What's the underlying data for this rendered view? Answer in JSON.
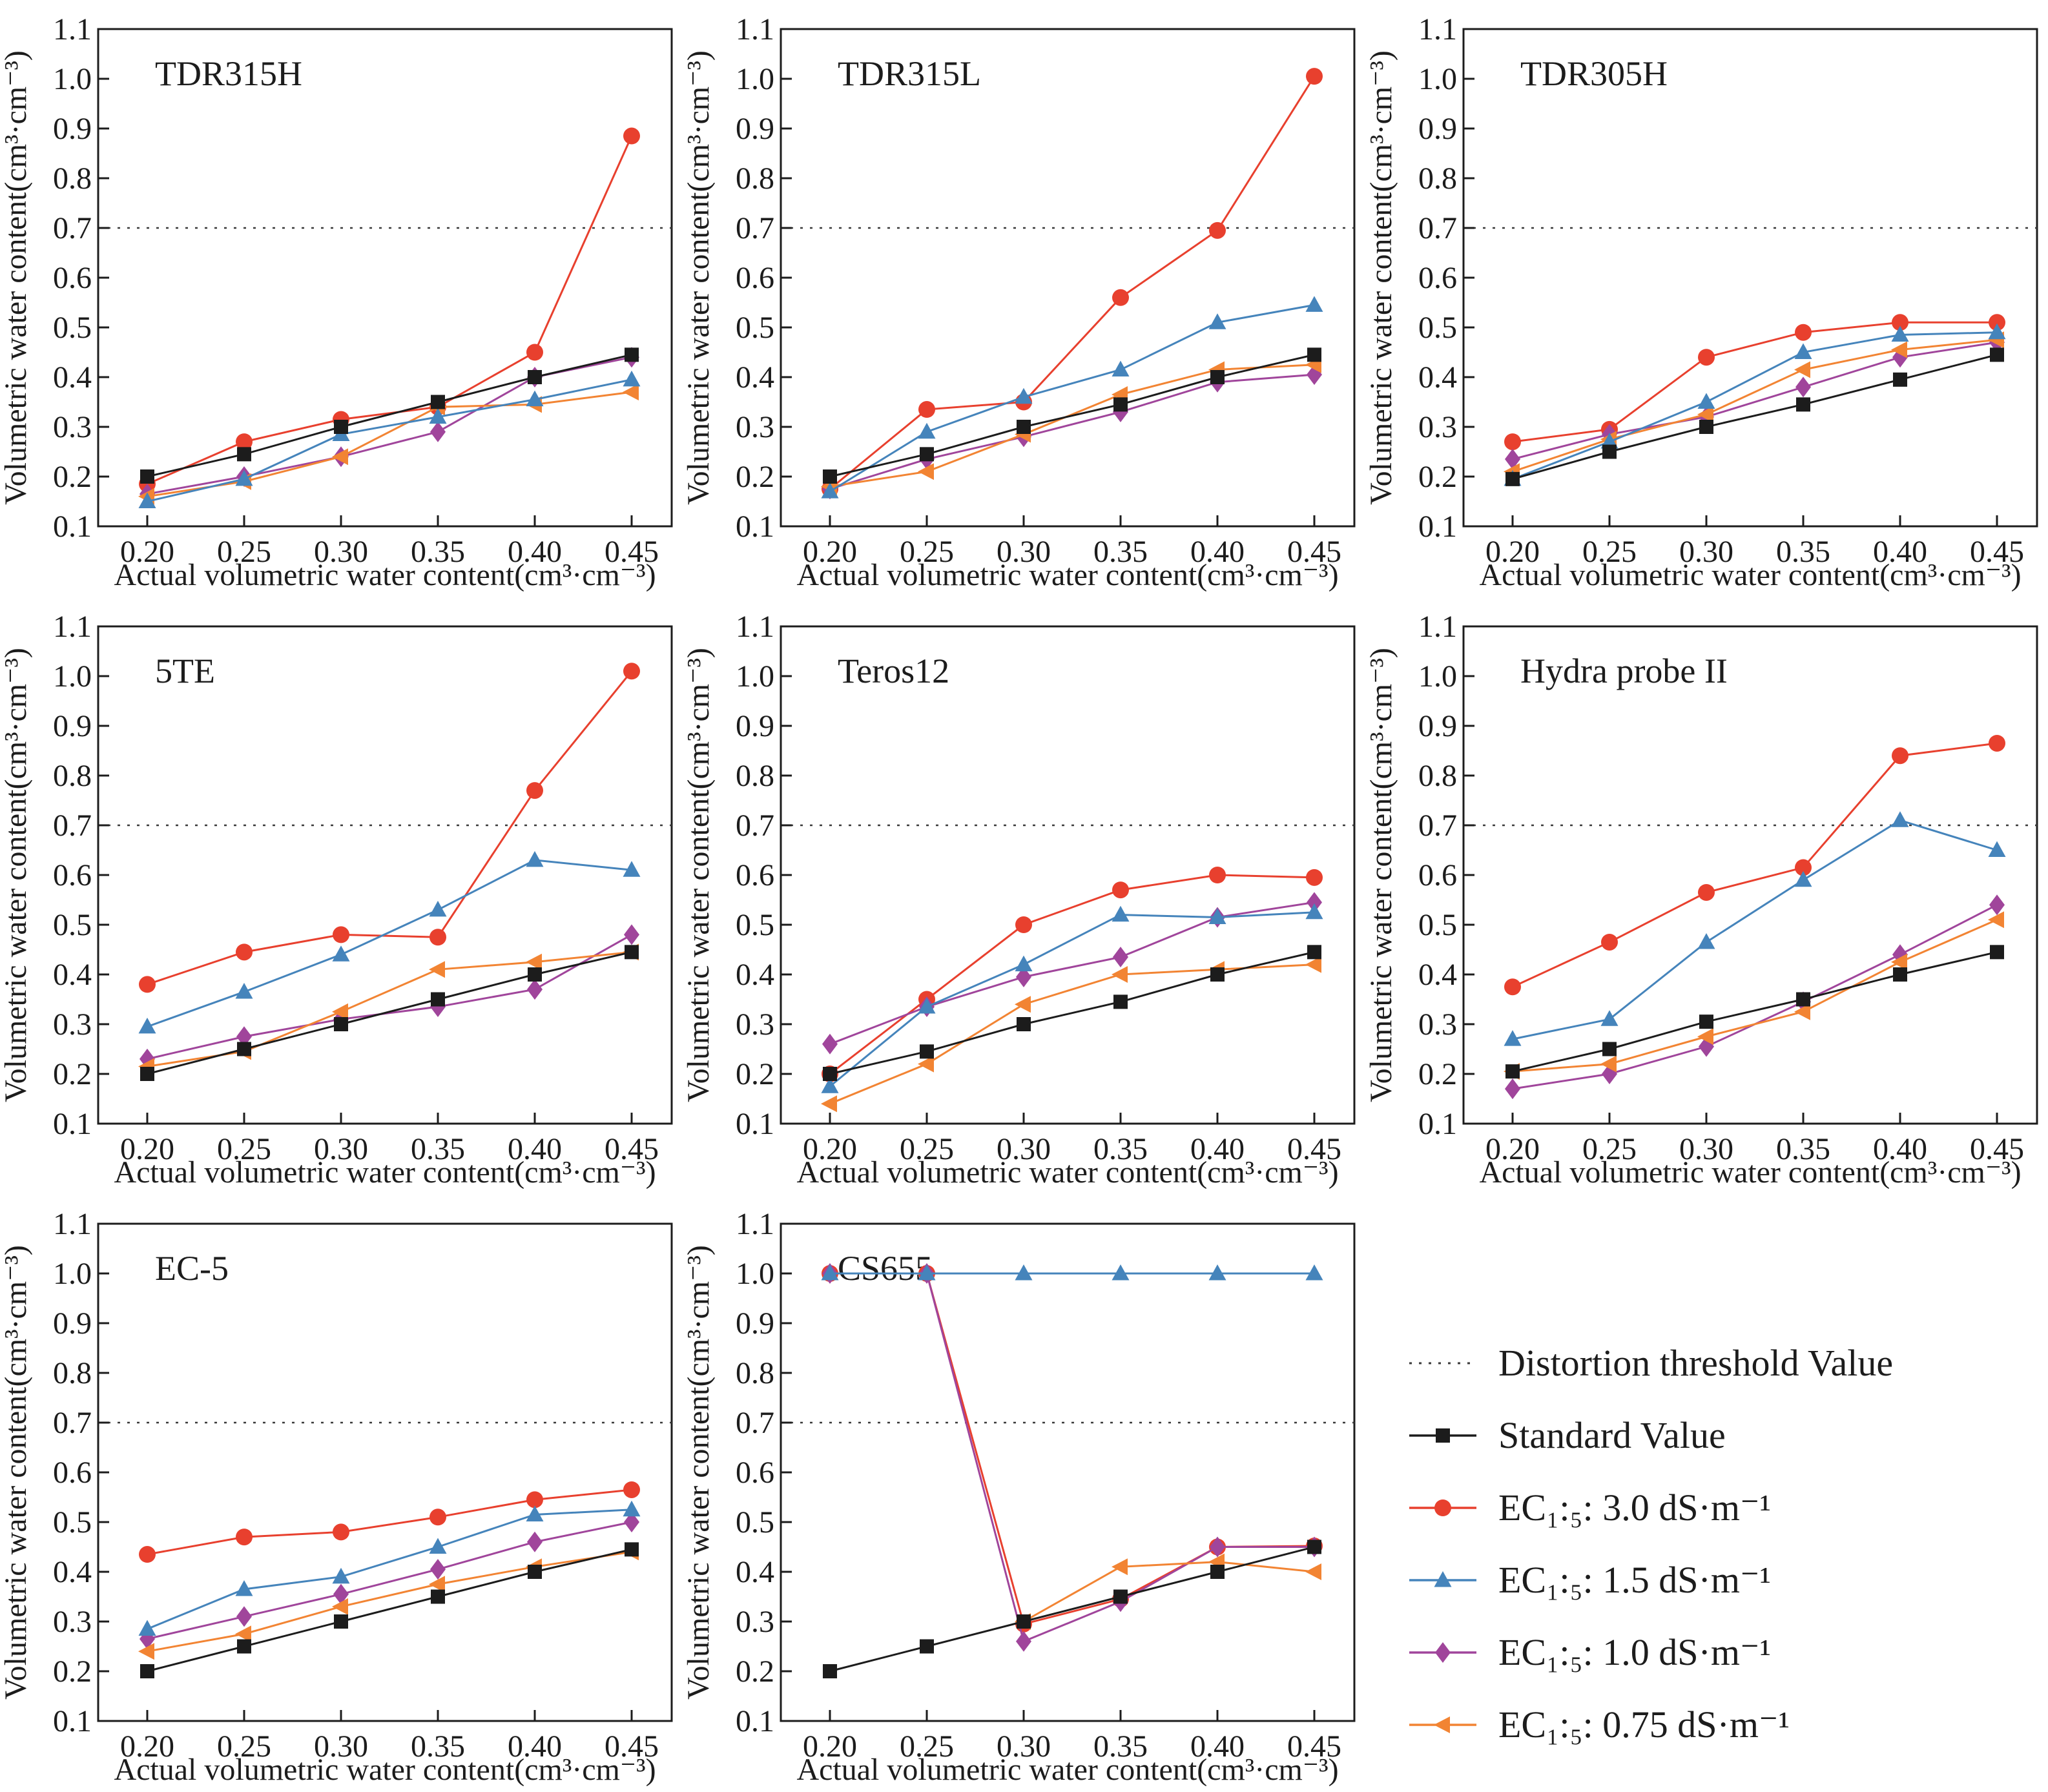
{
  "axes": {
    "xlabel": "Actual volumetric water content(cm³·cm⁻³)",
    "ylabel": "Volumetric water content(cm³·cm⁻³)",
    "x_ticks": [
      0.2,
      0.25,
      0.3,
      0.35,
      0.4,
      0.45
    ],
    "y_ticks": [
      0.1,
      0.2,
      0.3,
      0.4,
      0.5,
      0.6,
      0.7,
      0.8,
      0.9,
      1.0,
      1.1
    ],
    "xlim": [
      0.1747,
      0.4707
    ],
    "ylim": [
      0.1,
      1.1
    ],
    "threshold_y": 0.7,
    "grid": "off",
    "frame_color": "#1c1c1c"
  },
  "legend": {
    "position": "bottom-right-cell",
    "items": [
      {
        "key": "threshold",
        "marker": "dotted",
        "color": "#3a3a3a",
        "label": "Distortion threshold Value"
      },
      {
        "key": "standard",
        "marker": "square",
        "color": "#1c1c1c",
        "label": "Standard Value"
      },
      {
        "key": "ec_3_0",
        "marker": "circle",
        "color": "#e8402e",
        "label": "EC₁:₅: 3.0 dS·m⁻¹"
      },
      {
        "key": "ec_1_5",
        "marker": "triangle-up",
        "color": "#4584bb",
        "label": "EC₁:₅: 1.5 dS·m⁻¹"
      },
      {
        "key": "ec_1_0",
        "marker": "diamond",
        "color": "#a0459b",
        "label": "EC₁:₅: 1.0 dS·m⁻¹"
      },
      {
        "key": "ec_0_75",
        "marker": "triangle-left",
        "color": "#f28433",
        "label": "EC₁:₅: 0.75 dS·m⁻¹"
      }
    ]
  },
  "chart_data": {
    "type": "line",
    "x_label": "Actual volumetric water content(cm³·cm⁻³)",
    "y_label": "Volumetric water content(cm³·cm⁻³)",
    "x": [
      0.2,
      0.25,
      0.3,
      0.35,
      0.4,
      0.45
    ],
    "ylim": [
      0.1,
      1.1
    ],
    "threshold": 0.7,
    "draw_order": [
      "ec_3_0",
      "ec_1_0",
      "ec_0_75",
      "ec_1_5",
      "standard"
    ],
    "charts": [
      {
        "title": "TDR315H",
        "series": {
          "standard": [
            0.2,
            0.245,
            0.3,
            0.35,
            0.4,
            0.445
          ],
          "ec_3_0": [
            0.185,
            0.27,
            0.315,
            0.34,
            0.45,
            0.885
          ],
          "ec_1_5": [
            0.15,
            0.195,
            0.285,
            0.32,
            0.355,
            0.395
          ],
          "ec_1_0": [
            0.165,
            0.2,
            0.24,
            0.29,
            0.4,
            0.44
          ],
          "ec_0_75": [
            0.16,
            0.19,
            0.24,
            0.34,
            0.345,
            0.37
          ]
        }
      },
      {
        "title": "TDR315L",
        "series": {
          "standard": [
            0.2,
            0.245,
            0.3,
            0.345,
            0.4,
            0.445
          ],
          "ec_3_0": [
            0.175,
            0.335,
            0.35,
            0.56,
            0.695,
            1.005
          ],
          "ec_1_5": [
            0.17,
            0.29,
            0.36,
            0.415,
            0.51,
            0.545
          ],
          "ec_1_0": [
            0.175,
            0.235,
            0.28,
            0.33,
            0.39,
            0.405
          ],
          "ec_0_75": [
            0.18,
            0.21,
            0.285,
            0.365,
            0.415,
            0.425
          ]
        }
      },
      {
        "title": "TDR305H",
        "series": {
          "standard": [
            0.195,
            0.25,
            0.3,
            0.345,
            0.395,
            0.445
          ],
          "ec_3_0": [
            0.27,
            0.295,
            0.44,
            0.49,
            0.51,
            0.51
          ],
          "ec_1_5": [
            0.195,
            0.27,
            0.35,
            0.45,
            0.485,
            0.49
          ],
          "ec_1_0": [
            0.235,
            0.285,
            0.32,
            0.38,
            0.44,
            0.47
          ],
          "ec_0_75": [
            0.21,
            0.275,
            0.325,
            0.415,
            0.455,
            0.475
          ]
        }
      },
      {
        "title": "5TE",
        "series": {
          "standard": [
            0.2,
            0.25,
            0.3,
            0.35,
            0.4,
            0.445
          ],
          "ec_3_0": [
            0.38,
            0.445,
            0.48,
            0.475,
            0.77,
            1.01
          ],
          "ec_1_5": [
            0.295,
            0.365,
            0.44,
            0.53,
            0.63,
            0.61
          ],
          "ec_1_0": [
            0.23,
            0.275,
            0.31,
            0.335,
            0.37,
            0.48
          ],
          "ec_0_75": [
            0.215,
            0.245,
            0.325,
            0.41,
            0.425,
            0.445
          ]
        }
      },
      {
        "title": "Teros12",
        "series": {
          "standard": [
            0.2,
            0.245,
            0.3,
            0.345,
            0.4,
            0.445
          ],
          "ec_3_0": [
            0.2,
            0.35,
            0.5,
            0.57,
            0.6,
            0.595
          ],
          "ec_1_5": [
            0.175,
            0.335,
            0.42,
            0.52,
            0.515,
            0.525
          ],
          "ec_1_0": [
            0.26,
            0.335,
            0.395,
            0.435,
            0.515,
            0.545
          ],
          "ec_0_75": [
            0.14,
            0.22,
            0.34,
            0.4,
            0.41,
            0.42
          ]
        }
      },
      {
        "title": "Hydra probe II",
        "series": {
          "standard": [
            0.205,
            0.25,
            0.305,
            0.35,
            0.4,
            0.445
          ],
          "ec_3_0": [
            0.375,
            0.465,
            0.565,
            0.615,
            0.84,
            0.865
          ],
          "ec_1_5": [
            0.27,
            0.31,
            0.465,
            0.59,
            0.71,
            0.65
          ],
          "ec_1_0": [
            0.17,
            0.2,
            0.255,
            0.345,
            0.44,
            0.54
          ],
          "ec_0_75": [
            0.205,
            0.22,
            0.275,
            0.325,
            0.425,
            0.51
          ]
        }
      },
      {
        "title": "EC-5",
        "series": {
          "standard": [
            0.2,
            0.25,
            0.3,
            0.35,
            0.4,
            0.445
          ],
          "ec_3_0": [
            0.435,
            0.47,
            0.48,
            0.51,
            0.545,
            0.565
          ],
          "ec_1_5": [
            0.285,
            0.365,
            0.39,
            0.45,
            0.515,
            0.525
          ],
          "ec_1_0": [
            0.265,
            0.31,
            0.355,
            0.405,
            0.46,
            0.5
          ],
          "ec_0_75": [
            0.24,
            0.275,
            0.33,
            0.375,
            0.41,
            0.44
          ]
        }
      },
      {
        "title": "CS655",
        "series": {
          "standard": [
            0.2,
            0.25,
            0.3,
            0.35,
            0.4,
            0.45
          ],
          "ec_3_0": [
            1.0,
            1.0,
            0.295,
            0.345,
            0.45,
            0.452
          ],
          "ec_1_5": [
            1.0,
            1.0,
            1.0,
            1.0,
            1.0,
            1.0
          ],
          "ec_1_0": [
            1.0,
            1.0,
            0.26,
            0.34,
            0.45,
            0.45
          ],
          "ec_0_75": [
            null,
            null,
            0.3,
            0.41,
            0.42,
            0.4
          ]
        }
      }
    ]
  }
}
